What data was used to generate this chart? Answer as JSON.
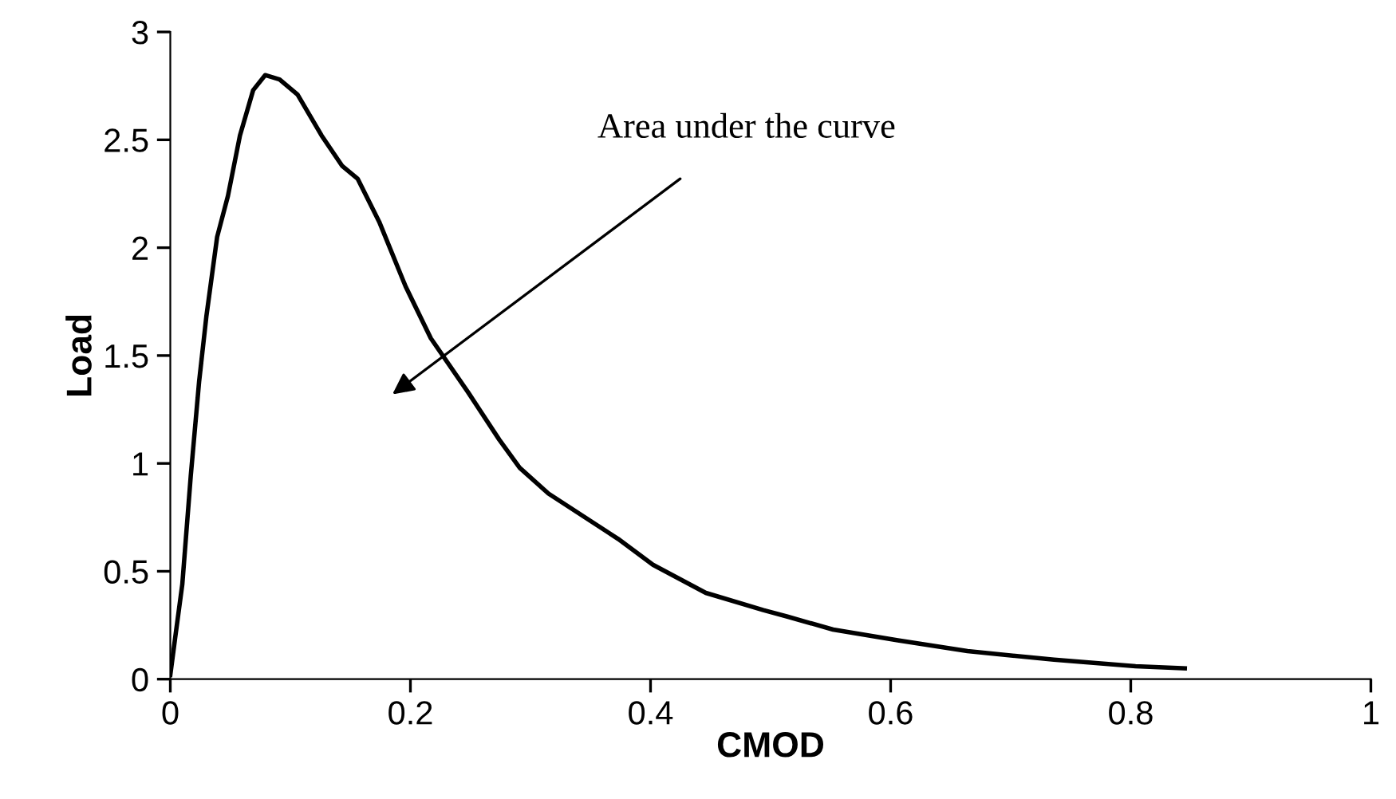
{
  "chart_data": {
    "type": "line",
    "xlabel": "CMOD",
    "ylabel": "Load",
    "annotations": [
      "Area under the curve"
    ],
    "x": [
      0,
      0.004,
      0.01,
      0.017,
      0.024,
      0.03,
      0.039,
      0.048,
      0.058,
      0.069,
      0.079,
      0.091,
      0.106,
      0.126,
      0.143,
      0.156,
      0.174,
      0.196,
      0.217,
      0.248,
      0.274,
      0.291,
      0.315,
      0.373,
      0.402,
      0.446,
      0.494,
      0.514,
      0.552,
      0.606,
      0.664,
      0.736,
      0.804,
      0.845
    ],
    "series": [
      {
        "color": "#000000",
        "values": [
          0.02,
          0.19,
          0.44,
          0.94,
          1.38,
          1.68,
          2.05,
          2.24,
          2.52,
          2.73,
          2.8,
          2.78,
          2.71,
          2.52,
          2.38,
          2.32,
          2.12,
          1.82,
          1.58,
          1.33,
          1.11,
          0.98,
          0.86,
          0.65,
          0.53,
          0.4,
          0.32,
          0.29,
          0.23,
          0.18,
          0.13,
          0.09,
          0.06,
          0.05
        ]
      }
    ],
    "xlim": [
      0,
      1
    ],
    "xticks": [
      0,
      0.2,
      0.4,
      0.6,
      0.8,
      1
    ],
    "ylim": [
      0,
      3
    ],
    "yticks": [
      0,
      0.5,
      1,
      1.5,
      2,
      2.5,
      3
    ],
    "grid": false,
    "legend": false
  }
}
